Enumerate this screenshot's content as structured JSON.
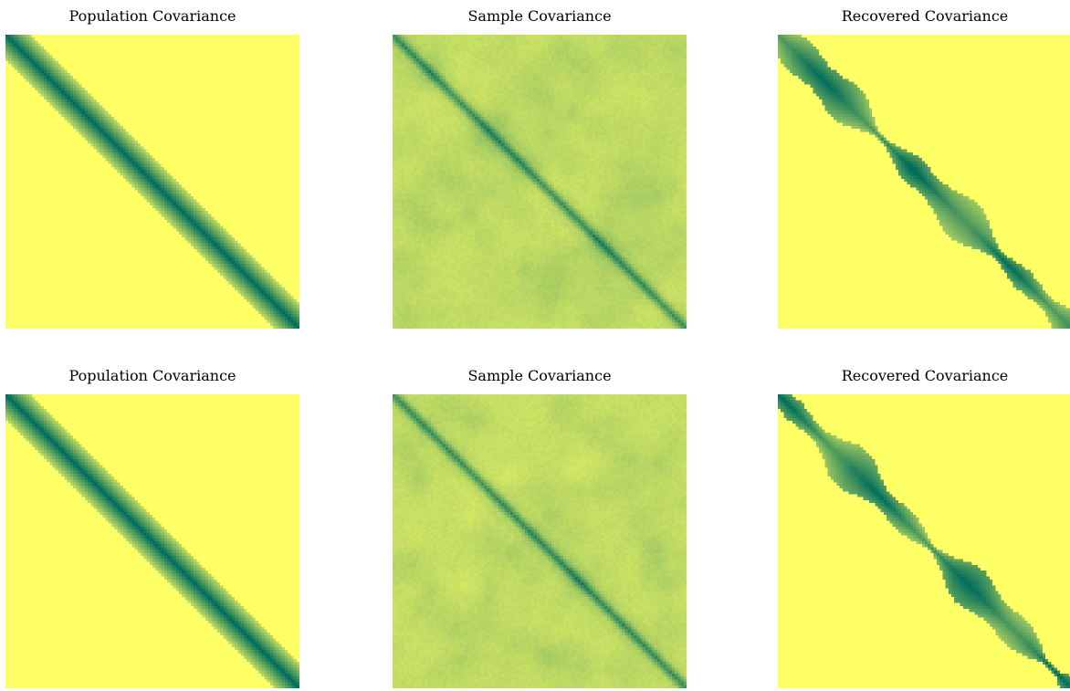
{
  "chart_data": [
    {
      "type": "heatmap",
      "title": "Population Covariance",
      "kind": "population",
      "n": 100,
      "seed": 11
    },
    {
      "type": "heatmap",
      "title": "Sample Covariance",
      "kind": "sample",
      "n": 100,
      "seed": 23
    },
    {
      "type": "heatmap",
      "title": "Recovered Covariance",
      "kind": "recovered",
      "n": 100,
      "seed": 37
    },
    {
      "type": "heatmap",
      "title": "Population Covariance",
      "kind": "population",
      "n": 100,
      "seed": 41
    },
    {
      "type": "heatmap",
      "title": "Sample Covariance",
      "kind": "sample",
      "n": 100,
      "seed": 53
    },
    {
      "type": "heatmap",
      "title": "Recovered Covariance",
      "kind": "recovered",
      "n": 100,
      "seed": 67
    }
  ],
  "colors": {
    "low": "#ffff66",
    "high": "#006d5b",
    "colormap": "summer_r"
  }
}
